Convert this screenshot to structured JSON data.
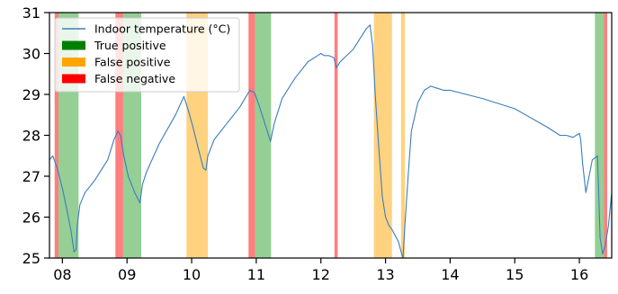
{
  "chart_data": {
    "type": "line",
    "title": "",
    "xlabel": "",
    "ylabel": "",
    "xlim": [
      7.8,
      16.5
    ],
    "ylim": [
      25,
      31
    ],
    "grid": false,
    "legend_placement": "top-left",
    "xticks": [
      8,
      9,
      10,
      11,
      12,
      13,
      14,
      15,
      16
    ],
    "xtick_labels": [
      "08",
      "09",
      "10",
      "11",
      "12",
      "13",
      "14",
      "15",
      "16"
    ],
    "yticks": [
      25,
      26,
      27,
      28,
      29,
      30,
      31
    ],
    "ytick_labels": [
      "25",
      "26",
      "27",
      "28",
      "29",
      "30",
      "31"
    ],
    "colors": {
      "line": "#3b7dbd",
      "true_positive": "#2ca02c",
      "false_positive": "#ffa500",
      "false_negative": "#ff0000",
      "legend_true_positive": "#008000",
      "legend_false_positive": "#ffa500",
      "legend_false_negative": "#ff0000"
    },
    "series": [
      {
        "name": "Indoor temperature (°C)",
        "x": [
          7.8,
          7.85,
          7.92,
          8.0,
          8.08,
          8.14,
          8.18,
          8.21,
          8.23,
          8.27,
          8.35,
          8.5,
          8.7,
          8.8,
          8.86,
          8.9,
          8.95,
          9.02,
          9.12,
          9.2,
          9.24,
          9.3,
          9.5,
          9.75,
          9.88,
          9.95,
          10.02,
          10.1,
          10.18,
          10.22,
          10.25,
          10.35,
          10.55,
          10.75,
          10.9,
          10.97,
          11.05,
          11.15,
          11.22,
          11.28,
          11.4,
          11.6,
          11.8,
          11.95,
          12.0,
          12.05,
          12.12,
          12.2,
          12.24,
          12.3,
          12.5,
          12.7,
          12.76,
          12.8,
          12.84,
          12.9,
          12.95,
          13.0,
          13.05,
          13.1,
          13.15,
          13.2,
          13.25,
          13.27,
          13.3,
          13.35,
          13.4,
          13.5,
          13.6,
          13.7,
          13.8,
          13.9,
          14.0,
          14.5,
          15.0,
          15.5,
          15.7,
          15.8,
          15.9,
          15.95,
          16.0,
          16.02,
          16.05,
          16.1,
          16.2,
          16.28,
          16.32,
          16.36,
          16.4,
          16.45,
          16.5
        ],
        "y": [
          27.4,
          27.5,
          27.2,
          26.7,
          26.1,
          25.6,
          25.15,
          25.2,
          25.8,
          26.3,
          26.6,
          26.9,
          27.4,
          27.9,
          28.1,
          28.0,
          27.5,
          27.0,
          26.6,
          26.35,
          26.8,
          27.1,
          27.8,
          28.5,
          28.95,
          28.6,
          28.2,
          27.7,
          27.2,
          27.15,
          27.5,
          27.9,
          28.3,
          28.7,
          29.1,
          29.05,
          28.7,
          28.2,
          27.85,
          28.3,
          28.9,
          29.4,
          29.8,
          29.95,
          30.0,
          29.95,
          29.95,
          29.9,
          29.65,
          29.8,
          30.1,
          30.6,
          30.7,
          30.2,
          29.0,
          27.6,
          26.5,
          26.0,
          25.8,
          25.7,
          25.55,
          25.4,
          25.1,
          25.0,
          25.8,
          27.0,
          28.1,
          28.8,
          29.1,
          29.2,
          29.15,
          29.1,
          29.1,
          28.9,
          28.65,
          28.2,
          28.0,
          28.0,
          27.95,
          28.0,
          28.05,
          27.9,
          27.3,
          26.6,
          27.4,
          27.5,
          25.5,
          25.1,
          25.3,
          25.8,
          26.6
        ]
      }
    ],
    "regions": [
      {
        "label": "False negative",
        "type": "false_negative",
        "start": 7.88,
        "end": 7.94
      },
      {
        "label": "True positive",
        "type": "true_positive",
        "start": 7.94,
        "end": 8.25
      },
      {
        "label": "False negative",
        "type": "false_negative",
        "start": 8.82,
        "end": 8.94
      },
      {
        "label": "True positive",
        "type": "true_positive",
        "start": 8.94,
        "end": 9.22
      },
      {
        "label": "False positive",
        "type": "false_positive",
        "start": 9.92,
        "end": 10.25
      },
      {
        "label": "False negative",
        "type": "false_negative",
        "start": 10.88,
        "end": 10.98
      },
      {
        "label": "True positive",
        "type": "true_positive",
        "start": 10.98,
        "end": 11.23
      },
      {
        "label": "False negative",
        "type": "false_negative",
        "start": 12.21,
        "end": 12.26
      },
      {
        "label": "False positive",
        "type": "false_positive",
        "start": 12.82,
        "end": 13.1
      },
      {
        "label": "False positive",
        "type": "false_positive",
        "start": 13.24,
        "end": 13.3
      },
      {
        "label": "True positive",
        "type": "true_positive",
        "start": 16.24,
        "end": 16.38
      },
      {
        "label": "False negative",
        "type": "false_negative",
        "start": 16.38,
        "end": 16.43
      }
    ],
    "legend": [
      {
        "label": "Indoor temperature (°C)",
        "kind": "line",
        "color": "#3b7dbd"
      },
      {
        "label": "True positive",
        "kind": "patch",
        "color": "#008000"
      },
      {
        "label": "False positive",
        "kind": "patch",
        "color": "#ffa500"
      },
      {
        "label": "False negative",
        "kind": "patch",
        "color": "#ff0000"
      }
    ]
  }
}
